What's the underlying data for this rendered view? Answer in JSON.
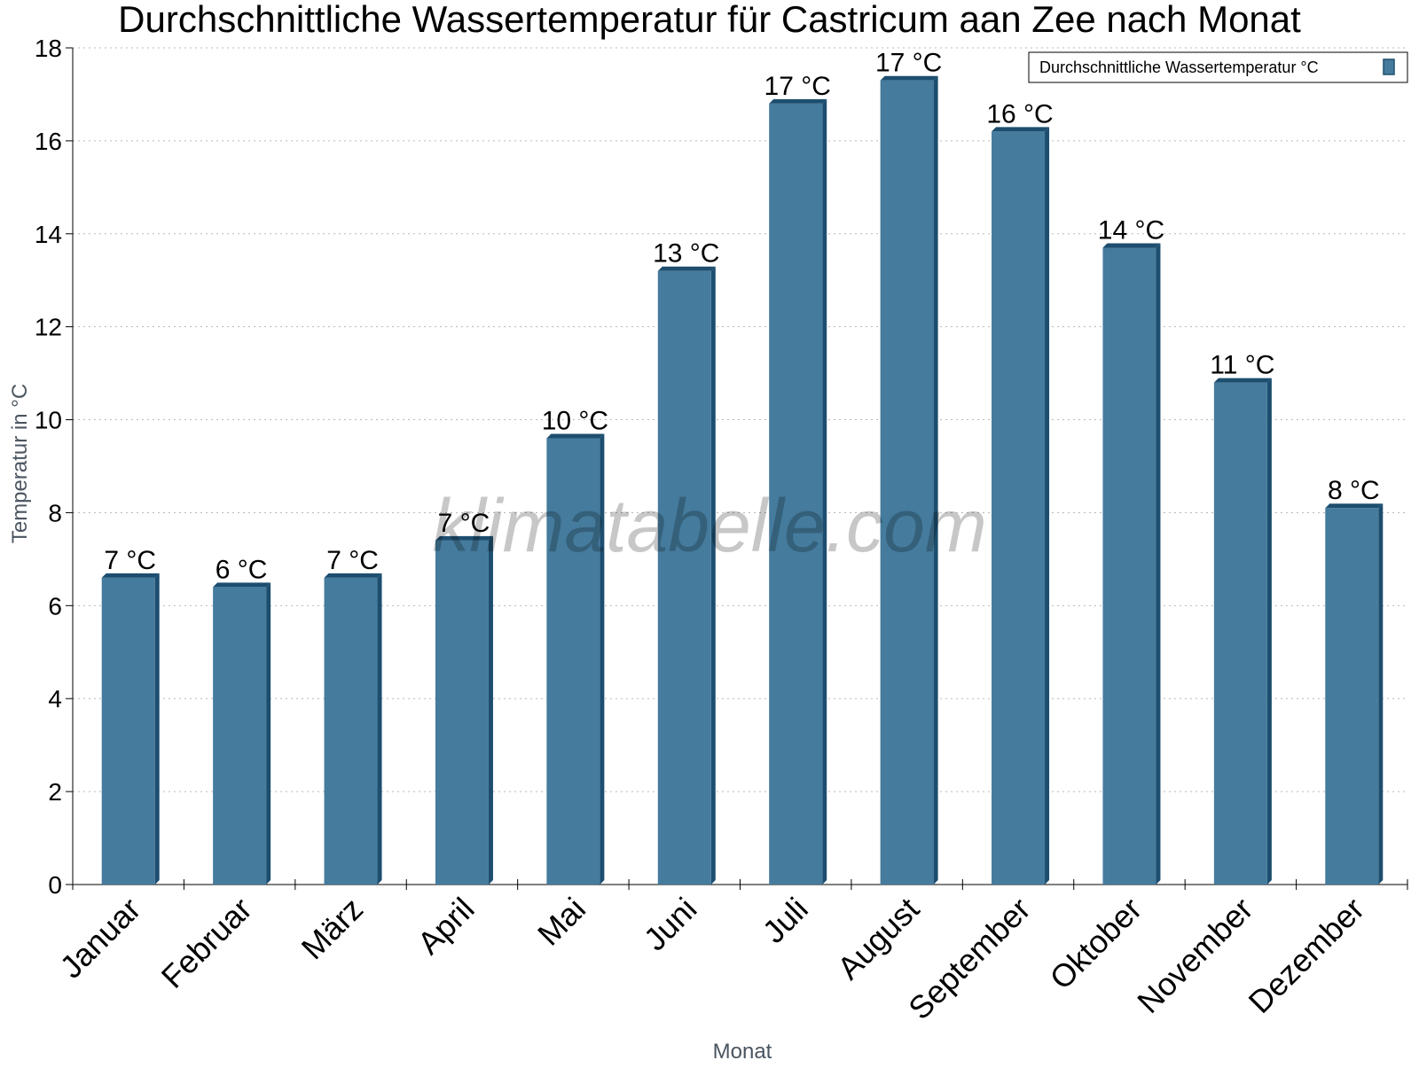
{
  "watermark": "klimatabelle.com",
  "chart_data": {
    "type": "bar",
    "title": "Durchschnittliche Wassertemperatur für Castricum aan Zee nach Monat",
    "xlabel": "Monat",
    "ylabel": "Temperatur in °C",
    "ylim": [
      0,
      18
    ],
    "yticks": [
      "0",
      "2",
      "4",
      "6",
      "8",
      "10",
      "12",
      "14",
      "16",
      "18"
    ],
    "grid": true,
    "legend_position": "top-right",
    "categories": [
      "Januar",
      "Februar",
      "März",
      "April",
      "Mai",
      "Juni",
      "Juli",
      "August",
      "September",
      "Oktober",
      "November",
      "Dezember"
    ],
    "series": [
      {
        "name": "Durchschnittliche Wassertemperatur °C",
        "color": "#457b9d",
        "edge_color": "#1d4e6f",
        "values": [
          6.6,
          6.4,
          6.6,
          7.4,
          9.6,
          13.2,
          16.8,
          17.3,
          16.2,
          13.7,
          10.8,
          8.1
        ],
        "labels": [
          "7 °C",
          "6 °C",
          "7 °C",
          "7 °C",
          "10 °C",
          "13 °C",
          "17 °C",
          "17 °C",
          "16 °C",
          "14 °C",
          "11 °C",
          "8 °C"
        ]
      }
    ]
  }
}
